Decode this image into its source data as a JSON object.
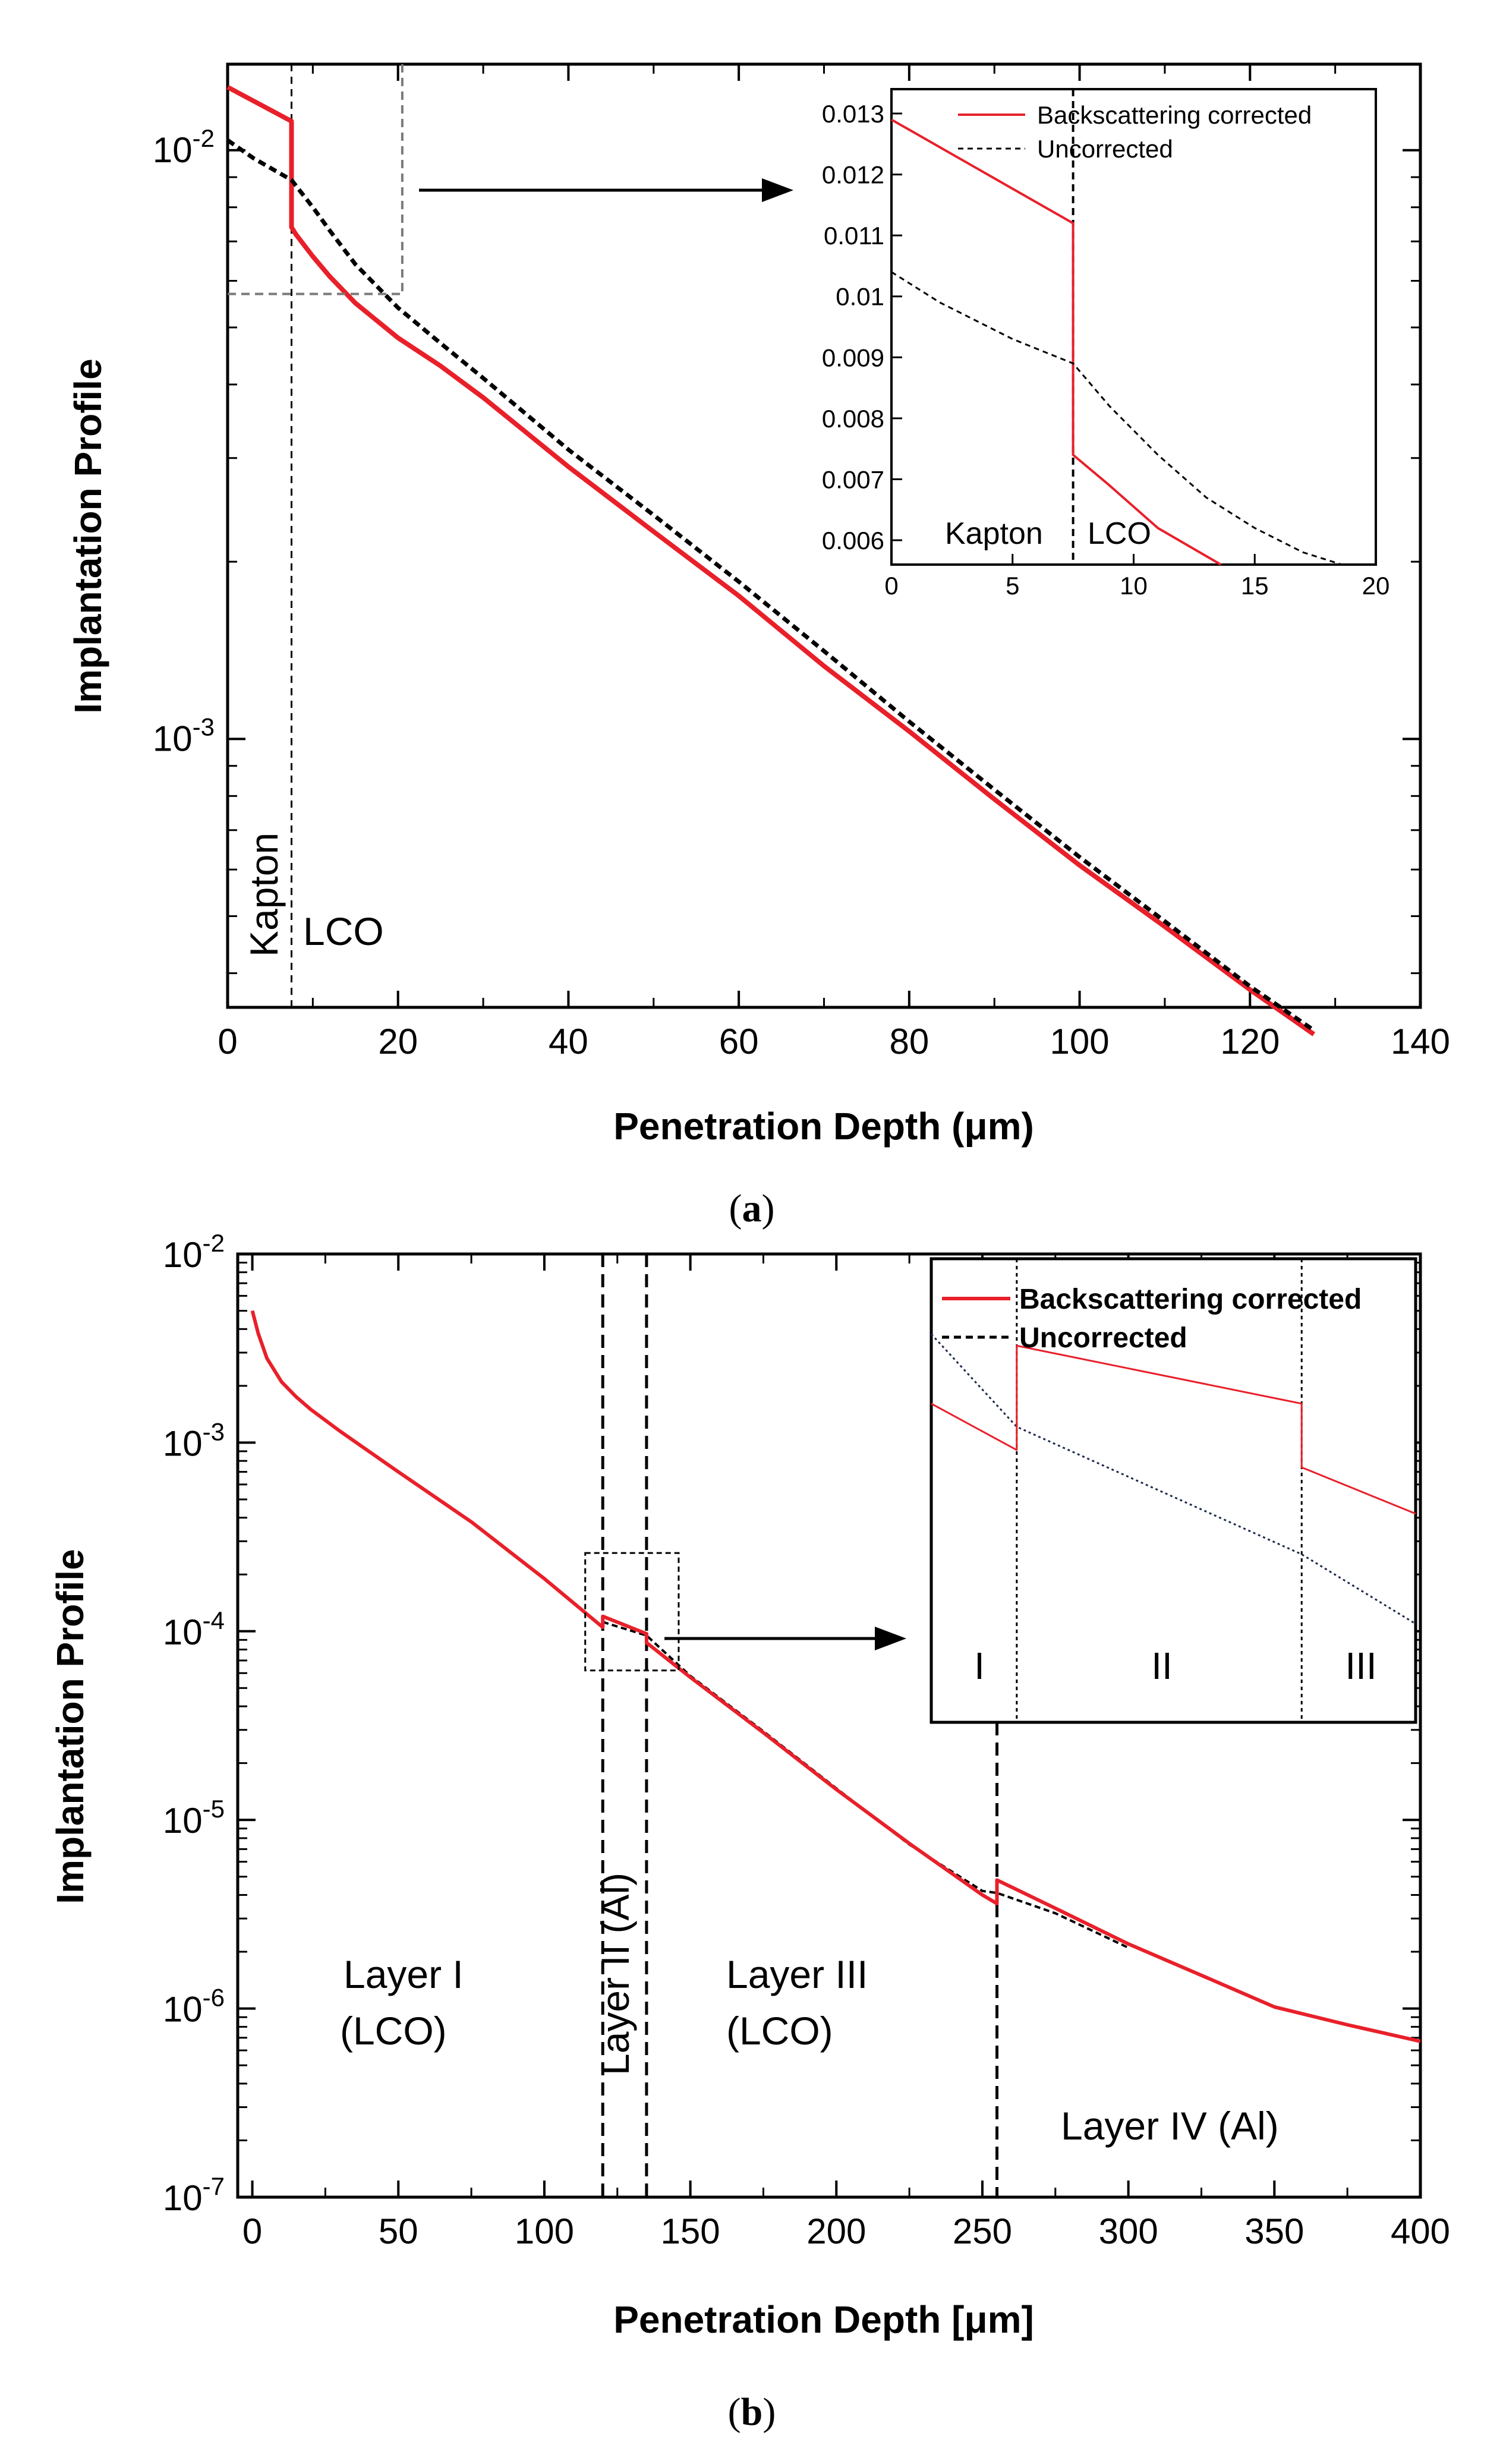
{
  "colors": {
    "corrected": "#e8202a",
    "uncorrected": "#000000",
    "helper_grey": "#7a7a7a"
  },
  "legend": {
    "corrected": "Backscattering corrected",
    "uncorrected": "Uncorrected"
  },
  "chart_data": [
    {
      "id": "a",
      "type": "line",
      "panel_label": "a",
      "xlabel": "Penetration Depth (μm)",
      "ylabel": "Implantation Profile",
      "xscale": "linear",
      "yscale": "log",
      "xlim": [
        0,
        140
      ],
      "ylim": [
        0.00035,
        0.014
      ],
      "xticks": [
        0,
        20,
        40,
        60,
        80,
        100,
        120,
        140
      ],
      "yticks": [
        {
          "value": 0.01,
          "base": "10",
          "exp": "-2"
        },
        {
          "value": 0.001,
          "base": "10",
          "exp": "-3"
        }
      ],
      "vlines": [
        7.5
      ],
      "annotations": [
        "Kapton",
        "LCO"
      ],
      "series": [
        {
          "name": "Backscattering corrected",
          "style": "solid",
          "x": [
            0,
            7.5,
            7.5,
            8,
            10,
            12,
            15,
            20,
            25,
            30,
            40,
            50,
            60,
            70,
            80,
            90,
            100,
            110,
            120,
            127.5
          ],
          "y": [
            0.0128,
            0.0112,
            0.0074,
            0.0072,
            0.0066,
            0.0061,
            0.0055,
            0.0048,
            0.0043,
            0.0038,
            0.0029,
            0.00225,
            0.00175,
            0.00133,
            0.00103,
            0.00079,
            0.00061,
            0.00048,
            0.000375,
            0.000315
          ]
        },
        {
          "name": "Uncorrected",
          "style": "dashed",
          "x": [
            0,
            3,
            7.5,
            10,
            12,
            15,
            20,
            25,
            30,
            40,
            50,
            60,
            70,
            80,
            90,
            100,
            110,
            120,
            127.5
          ],
          "y": [
            0.0104,
            0.0097,
            0.0089,
            0.008,
            0.0073,
            0.0064,
            0.0054,
            0.0047,
            0.0041,
            0.0031,
            0.0024,
            0.00185,
            0.00141,
            0.00107,
            0.00082,
            0.00063,
            0.00049,
            0.00038,
            0.00032
          ]
        }
      ],
      "zoom_box": {
        "x": [
          0,
          20.5
        ],
        "y": [
          0.0057,
          0.014
        ]
      },
      "inset": {
        "xlim": [
          0,
          20
        ],
        "ylim": [
          0.0056,
          0.0134
        ],
        "xticks": [
          0,
          5,
          10,
          15,
          20
        ],
        "yticks": [
          "0.013",
          "0.012",
          "0.011",
          "0.01",
          "0.009",
          "0.008",
          "0.007",
          "0.006"
        ],
        "ytick_values": [
          0.013,
          0.012,
          0.011,
          0.01,
          0.009,
          0.008,
          0.007,
          0.006
        ],
        "vlines": [
          7.5
        ],
        "annotations": [
          "Kapton",
          "LCO"
        ],
        "series": [
          {
            "name": "Backscattering corrected",
            "style": "solid",
            "x": [
              0,
              7.5,
              7.5,
              9,
              11,
              13.6
            ],
            "y": [
              0.0129,
              0.0112,
              0.0074,
              0.0069,
              0.0062,
              0.0056
            ]
          },
          {
            "name": "Uncorrected",
            "style": "dashed",
            "x": [
              0,
              2,
              5,
              7.5,
              9,
              11,
              13,
              15,
              17,
              18.6
            ],
            "y": [
              0.0104,
              0.0099,
              0.0093,
              0.0089,
              0.0082,
              0.0074,
              0.0067,
              0.0062,
              0.0058,
              0.0056
            ]
          }
        ]
      }
    },
    {
      "id": "b",
      "type": "line",
      "panel_label": "b",
      "xlabel": "Penetration Depth [μm]",
      "ylabel": "Implantation Profile",
      "xscale": "linear",
      "yscale": "log",
      "xlim": [
        -5,
        400
      ],
      "ylim": [
        1e-07,
        0.01
      ],
      "xticks": [
        0,
        50,
        100,
        150,
        200,
        250,
        300,
        350,
        400
      ],
      "yticks": [
        {
          "value": 0.01,
          "base": "10",
          "exp": "-2"
        },
        {
          "value": 0.001,
          "base": "10",
          "exp": "-3"
        },
        {
          "value": 0.0001,
          "base": "10",
          "exp": "-4"
        },
        {
          "value": 1e-05,
          "base": "10",
          "exp": "-5"
        },
        {
          "value": 1e-06,
          "base": "10",
          "exp": "-6"
        },
        {
          "value": 1e-07,
          "base": "10",
          "exp": "-7"
        }
      ],
      "vlines": [
        120,
        135,
        255
      ],
      "annotations": [
        "Layer I",
        "(LCO)",
        "Layer II (Al)",
        "Layer III",
        "(LCO)",
        "Layer IV (Al)"
      ],
      "series": [
        {
          "name": "Backscattering corrected",
          "style": "solid",
          "x": [
            0,
            2,
            5,
            10,
            15,
            20,
            30,
            50,
            75,
            100,
            120,
            120,
            135,
            135,
            150,
            175,
            200,
            225,
            250,
            255,
            255,
            275,
            300,
            325,
            350,
            375,
            400
          ],
          "y": [
            0.005,
            0.0038,
            0.0028,
            0.0021,
            0.00175,
            0.0015,
            0.00115,
            0.0007,
            0.00038,
            0.00019,
            0.000105,
            0.00012,
            9.7e-05,
            8.7e-05,
            5.7e-05,
            2.9e-05,
            1.45e-05,
            7.5e-06,
            4e-06,
            3.6e-06,
            4.8e-06,
            3.4e-06,
            2.2e-06,
            1.5e-06,
            1.02e-06,
            8.2e-07,
            6.7e-07
          ]
        },
        {
          "name": "Uncorrected",
          "style": "dashed",
          "x": [
            120,
            135,
            150,
            175,
            200,
            225,
            250,
            255,
            275,
            300
          ],
          "y": [
            0.000112,
            9.5e-05,
            5.8e-05,
            2.95e-05,
            1.47e-05,
            7.4e-06,
            4.2e-06,
            4.1e-06,
            3.2e-06,
            2.1e-06
          ]
        }
      ],
      "zoom_box": {
        "x": [
          114,
          146
        ],
        "y": [
          6.2e-05,
          0.00026
        ]
      },
      "inset": {
        "region_labels": [
          "I",
          "II",
          "III"
        ],
        "boundaries": [
          1,
          6
        ],
        "xlim": [
          -0.5,
          8
        ],
        "ylim": [
          0.000155,
          0.000235
        ],
        "series": [
          {
            "name": "Backscattering corrected",
            "style": "solid",
            "x": [
              -0.5,
              1,
              1,
              6,
              6,
              8
            ],
            "y": [
              0.00021,
              0.000202,
              0.00022,
              0.00021,
              0.000199,
              0.000191
            ]
          },
          {
            "name": "Uncorrected",
            "style": "dotted",
            "x": [
              -0.5,
              1,
              6,
              8
            ],
            "y": [
              0.000222,
              0.000206,
              0.000184,
              0.000172
            ]
          }
        ]
      }
    }
  ]
}
